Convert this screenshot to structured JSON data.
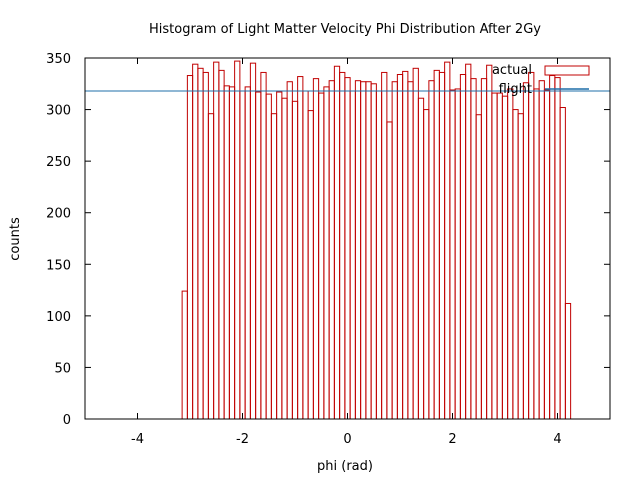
{
  "chart_data": {
    "type": "bar",
    "title": "Histogram of Light Matter Velocity Phi Distribution After 2Gy",
    "xlabel": "phi (rad)",
    "ylabel": "counts",
    "xlim": [
      -5,
      5
    ],
    "ylim": [
      0,
      350
    ],
    "xticks": [
      -4,
      -2,
      0,
      2,
      4
    ],
    "yticks": [
      0,
      50,
      100,
      150,
      200,
      250,
      300,
      350
    ],
    "bin_start": -3.15,
    "bin_width": 0.1,
    "series": [
      {
        "name": "actual",
        "color": "#c00000",
        "values": [
          124,
          333,
          344,
          340,
          336,
          296,
          346,
          338,
          323,
          322,
          347,
          318,
          322,
          345,
          317,
          336,
          315,
          296,
          317,
          311,
          327,
          308,
          332,
          318,
          299,
          330,
          316,
          322,
          328,
          342,
          336,
          331,
          318,
          328,
          327,
          327,
          325,
          318,
          336,
          288,
          327,
          334,
          337,
          327,
          340,
          311,
          300,
          328,
          338,
          336,
          346,
          319,
          320,
          334,
          344,
          330,
          295,
          330,
          343,
          316,
          316,
          313,
          320,
          300,
          296,
          326,
          336,
          320,
          328,
          319,
          333,
          331,
          302,
          112
        ]
      },
      {
        "name": "flight",
        "color": "#1f6fa8",
        "value": 318
      }
    ],
    "legend_position": "top-right",
    "grid": false
  }
}
